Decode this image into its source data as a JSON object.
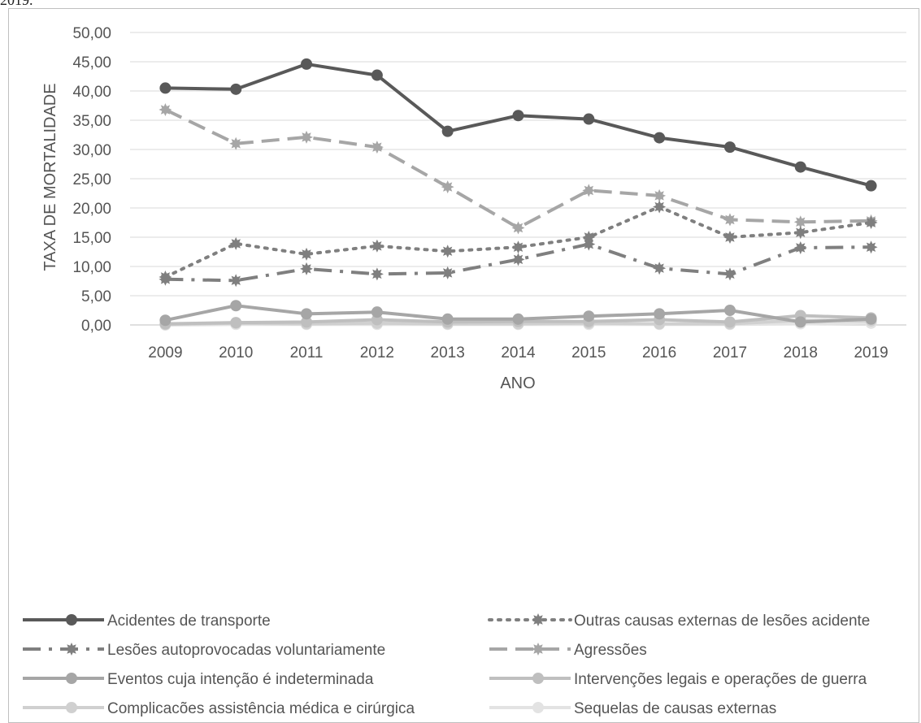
{
  "caption": "2019.",
  "chart_data": {
    "type": "line",
    "title": "",
    "xlabel": "ANO",
    "ylabel": "TAXA DE MORTALIDADE",
    "ylim": [
      0,
      50
    ],
    "yticks": [
      "0,00",
      "5,00",
      "10,00",
      "15,00",
      "20,00",
      "25,00",
      "30,00",
      "35,00",
      "40,00",
      "45,00",
      "50,00"
    ],
    "categories": [
      "2009",
      "2010",
      "2011",
      "2012",
      "2013",
      "2014",
      "2015",
      "2016",
      "2017",
      "2018",
      "2019"
    ],
    "grid": true,
    "legend_position": "bottom",
    "series": [
      {
        "name": "Acidentes de transporte",
        "color": "#595959",
        "dash": "solid",
        "marker": "circle",
        "values": [
          40.5,
          40.3,
          44.6,
          42.7,
          33.1,
          35.8,
          35.2,
          32.0,
          30.4,
          27.0,
          23.8
        ]
      },
      {
        "name": "Outras causas externas de lesões acidente",
        "color": "#7f7f7f",
        "dash": "dot",
        "marker": "star",
        "values": [
          8.2,
          13.9,
          12.1,
          13.5,
          12.6,
          13.3,
          15.0,
          20.2,
          15.0,
          15.8,
          17.5
        ]
      },
      {
        "name": "Lesões autoprovocadas voluntariamente",
        "color": "#7f7f7f",
        "dash": "dashdot",
        "marker": "star",
        "values": [
          7.8,
          7.6,
          9.6,
          8.7,
          8.9,
          11.2,
          13.8,
          9.7,
          8.7,
          13.2,
          13.3
        ]
      },
      {
        "name": "Agressões",
        "color": "#a6a6a6",
        "dash": "dash",
        "marker": "star",
        "values": [
          36.8,
          31.0,
          32.1,
          30.4,
          23.6,
          16.6,
          23.0,
          22.1,
          18.0,
          17.6,
          17.8
        ]
      },
      {
        "name": "Eventos cuja intenção é indeterminada",
        "color": "#a6a6a6",
        "dash": "solid",
        "marker": "circle",
        "values": [
          0.8,
          3.3,
          1.9,
          2.2,
          1.0,
          1.0,
          1.5,
          1.9,
          2.5,
          0.5,
          1.0
        ]
      },
      {
        "name": "Intervenções legais e operações de guerra",
        "color": "#bfbfbf",
        "dash": "solid",
        "marker": "circle",
        "values": [
          0.2,
          0.4,
          0.5,
          0.9,
          0.5,
          0.6,
          0.6,
          0.9,
          0.5,
          1.6,
          1.2
        ]
      },
      {
        "name": "Complicacões assistência médica e cirúrgica",
        "color": "#d0d0d0",
        "dash": "solid",
        "marker": "circle",
        "values": [
          0.1,
          0.3,
          0.2,
          0.3,
          0.2,
          0.2,
          0.3,
          0.2,
          0.2,
          0.8,
          0.7
        ]
      },
      {
        "name": "Sequelas de causas externas",
        "color": "#e3e3e3",
        "dash": "solid",
        "marker": "circle",
        "values": [
          0.0,
          0.1,
          0.1,
          0.1,
          0.1,
          0.1,
          0.1,
          0.1,
          0.1,
          0.2,
          0.3
        ]
      }
    ]
  }
}
